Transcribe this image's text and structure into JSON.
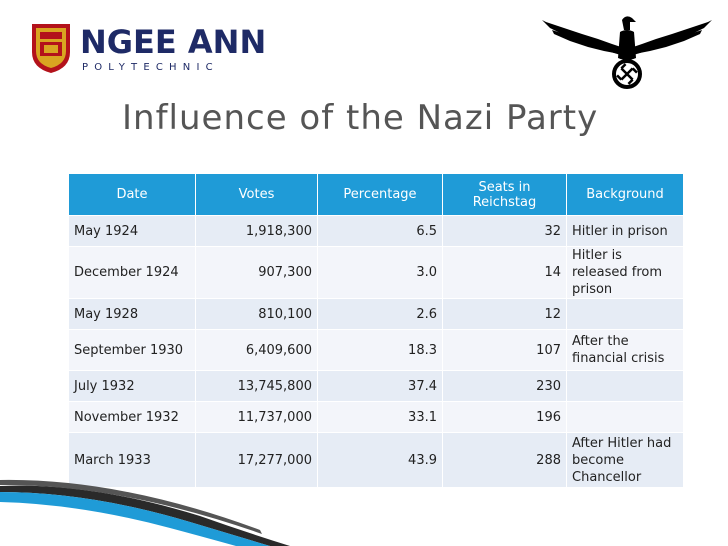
{
  "logo": {
    "name": "NGEE ANN",
    "subtitle": "POLYTECHNIC"
  },
  "slide": {
    "title": "Influence of the Nazi Party"
  },
  "table": {
    "headers": {
      "date": "Date",
      "votes": "Votes",
      "percentage": "Percentage",
      "seats": "Seats in Reichstag",
      "background": "Background"
    },
    "rows": [
      {
        "date": "May 1924",
        "votes": "1,918,300",
        "percentage": "6.5",
        "seats": "32",
        "background": "Hitler in prison"
      },
      {
        "date": "December 1924",
        "votes": "907,300",
        "percentage": "3.0",
        "seats": "14",
        "background": "Hitler is released from prison"
      },
      {
        "date": "May 1928",
        "votes": "810,100",
        "percentage": "2.6",
        "seats": "12",
        "background": ""
      },
      {
        "date": "September 1930",
        "votes": "6,409,600",
        "percentage": "18.3",
        "seats": "107",
        "background": "After the financial crisis"
      },
      {
        "date": "July 1932",
        "votes": "13,745,800",
        "percentage": "37.4",
        "seats": "230",
        "background": ""
      },
      {
        "date": "November 1932",
        "votes": "11,737,000",
        "percentage": "33.1",
        "seats": "196",
        "background": ""
      },
      {
        "date": "March 1933",
        "votes": "17,277,000",
        "percentage": "43.9",
        "seats": "288",
        "background": "After Hitler had become Chancellor"
      }
    ]
  },
  "colors": {
    "header": "#1f9bd7",
    "row_odd": "#e6ecf5",
    "row_even": "#f3f5fa",
    "title": "#555555",
    "logo": "#1e2a66"
  },
  "icons": {
    "logo": "crest-icon",
    "emblem": "eagle-emblem-icon"
  }
}
